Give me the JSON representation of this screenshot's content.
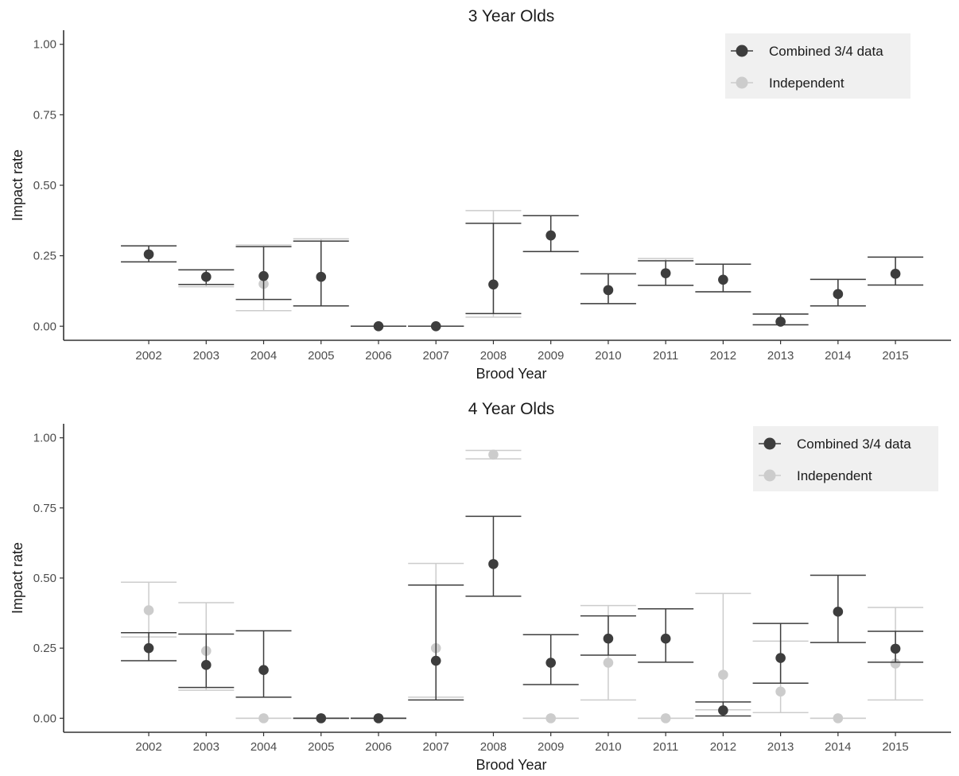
{
  "legend": {
    "entries": [
      {
        "label": "Combined 3/4 data",
        "color": "#3d3d3d"
      },
      {
        "label": "Independent",
        "color": "#cccccc"
      }
    ],
    "placement": "top-right",
    "background": "#f0f0f0"
  },
  "chart_data": [
    {
      "type": "scatter",
      "title": "3 Year Olds",
      "xlabel": "Brood Year",
      "ylabel": "Impact rate",
      "ylim": [
        -0.05,
        1.05
      ],
      "yticks": [
        "0.00",
        "0.25",
        "0.50",
        "0.75",
        "1.00"
      ],
      "categories": [
        "2002",
        "2003",
        "2004",
        "2005",
        "2006",
        "2007",
        "2008",
        "2009",
        "2010",
        "2011",
        "2012",
        "2013",
        "2014",
        "2015"
      ],
      "grid": false,
      "series": [
        {
          "name": "Combined 3/4 data",
          "color": "#3d3d3d",
          "values": [
            0.255,
            0.175,
            0.178,
            0.175,
            0.0,
            0.0,
            0.148,
            0.322,
            0.128,
            0.188,
            0.165,
            0.016,
            0.114,
            0.186
          ],
          "lower": [
            0.228,
            0.148,
            0.095,
            0.072,
            0.0,
            0.0,
            0.045,
            0.265,
            0.08,
            0.145,
            0.122,
            0.005,
            0.072,
            0.146
          ],
          "upper": [
            0.285,
            0.2,
            0.282,
            0.302,
            0.0,
            0.0,
            0.365,
            0.392,
            0.186,
            0.232,
            0.22,
            0.043,
            0.166,
            0.245
          ]
        },
        {
          "name": "Independent",
          "color": "#cccccc",
          "values": [
            0.255,
            0.175,
            0.15,
            0.175,
            0.0,
            0.0,
            0.148,
            0.322,
            0.128,
            0.188,
            0.165,
            0.016,
            0.114,
            0.186
          ],
          "lower": [
            0.228,
            0.14,
            0.055,
            0.072,
            0.0,
            0.0,
            0.032,
            0.265,
            0.08,
            0.145,
            0.122,
            0.005,
            0.072,
            0.146
          ],
          "upper": [
            0.285,
            0.2,
            0.288,
            0.31,
            0.0,
            0.0,
            0.41,
            0.392,
            0.186,
            0.24,
            0.22,
            0.043,
            0.166,
            0.245
          ]
        }
      ]
    },
    {
      "type": "scatter",
      "title": "4 Year Olds",
      "xlabel": "Brood Year",
      "ylabel": "Impact rate",
      "ylim": [
        -0.05,
        1.05
      ],
      "yticks": [
        "0.00",
        "0.25",
        "0.50",
        "0.75",
        "1.00"
      ],
      "categories": [
        "2002",
        "2003",
        "2004",
        "2005",
        "2006",
        "2007",
        "2008",
        "2009",
        "2010",
        "2011",
        "2012",
        "2013",
        "2014",
        "2015"
      ],
      "grid": false,
      "series": [
        {
          "name": "Combined 3/4 data",
          "color": "#3d3d3d",
          "values": [
            0.25,
            0.19,
            0.172,
            0.0,
            0.0,
            0.205,
            0.55,
            0.198,
            0.284,
            0.284,
            0.028,
            0.215,
            0.38,
            0.248
          ],
          "lower": [
            0.205,
            0.11,
            0.075,
            0.0,
            0.0,
            0.065,
            0.435,
            0.12,
            0.225,
            0.2,
            0.008,
            0.125,
            0.27,
            0.2
          ],
          "upper": [
            0.305,
            0.3,
            0.312,
            0.0,
            0.0,
            0.475,
            0.72,
            0.298,
            0.365,
            0.39,
            0.058,
            0.338,
            0.51,
            0.31
          ]
        },
        {
          "name": "Independent",
          "color": "#cccccc",
          "values": [
            0.385,
            0.24,
            0.0,
            0.0,
            0.0,
            0.25,
            0.94,
            0.0,
            0.198,
            0.0,
            0.155,
            0.095,
            0.0,
            0.195
          ],
          "lower": [
            0.29,
            0.1,
            0.0,
            0.0,
            0.0,
            0.075,
            0.925,
            0.0,
            0.065,
            0.0,
            0.03,
            0.02,
            0.0,
            0.065
          ],
          "upper": [
            0.485,
            0.412,
            0.0,
            0.0,
            0.0,
            0.552,
            0.955,
            0.0,
            0.402,
            0.0,
            0.445,
            0.275,
            0.0,
            0.395
          ]
        }
      ]
    }
  ]
}
